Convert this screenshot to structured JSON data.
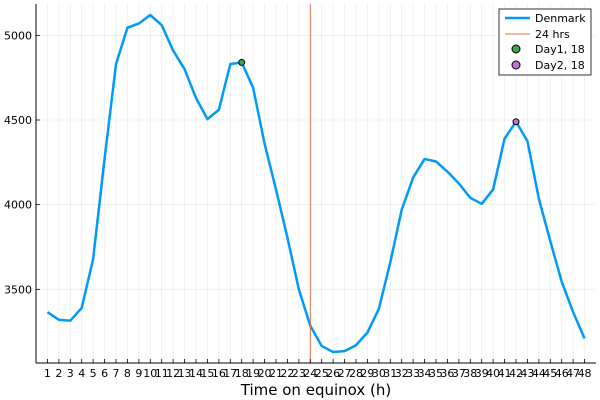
{
  "chart_data": {
    "type": "line",
    "title": "",
    "xlabel": "Time on equinox (h)",
    "ylabel": "",
    "xlim": [
      0,
      49
    ],
    "ylim": [
      3065,
      5185
    ],
    "x_ticks": [
      1,
      2,
      3,
      4,
      5,
      6,
      7,
      8,
      9,
      10,
      11,
      12,
      13,
      14,
      15,
      16,
      17,
      18,
      19,
      20,
      21,
      22,
      23,
      24,
      25,
      26,
      27,
      28,
      29,
      30,
      31,
      32,
      33,
      34,
      35,
      36,
      37,
      38,
      39,
      40,
      41,
      42,
      43,
      44,
      45,
      46,
      47,
      48
    ],
    "y_ticks": [
      3500,
      4000,
      4500,
      5000
    ],
    "grid": true,
    "legend_position": "top-right",
    "series": [
      {
        "name": "Denmark",
        "color": "#009af9",
        "x": [
          1,
          2,
          3,
          4,
          5,
          6,
          7,
          8,
          9,
          10,
          11,
          12,
          13,
          14,
          15,
          16,
          17,
          18,
          19,
          20,
          21,
          22,
          23,
          24,
          25,
          26,
          27,
          28,
          29,
          30,
          31,
          32,
          33,
          34,
          35,
          36,
          37,
          38,
          39,
          40,
          41,
          42,
          43,
          44,
          45,
          46,
          47,
          48
        ],
        "values": [
          3365,
          3320,
          3315,
          3390,
          3680,
          4270,
          4830,
          5045,
          5070,
          5120,
          5060,
          4910,
          4800,
          4630,
          4505,
          4560,
          4830,
          4840,
          4690,
          4360,
          4090,
          3805,
          3500,
          3285,
          3165,
          3130,
          3135,
          3170,
          3245,
          3385,
          3660,
          3970,
          4160,
          4270,
          4255,
          4195,
          4125,
          4040,
          4005,
          4090,
          4390,
          4490,
          4375,
          4035,
          3785,
          3545,
          3365,
          3210
        ]
      }
    ],
    "vline": {
      "name": "24 hrs",
      "x": 24,
      "color": "#e26f46"
    },
    "points": [
      {
        "name": "Day1, 18",
        "x": 18,
        "y": 4840,
        "color": "#3da44d"
      },
      {
        "name": "Day2, 18",
        "x": 42,
        "y": 4490,
        "color": "#c271d2"
      }
    ]
  }
}
